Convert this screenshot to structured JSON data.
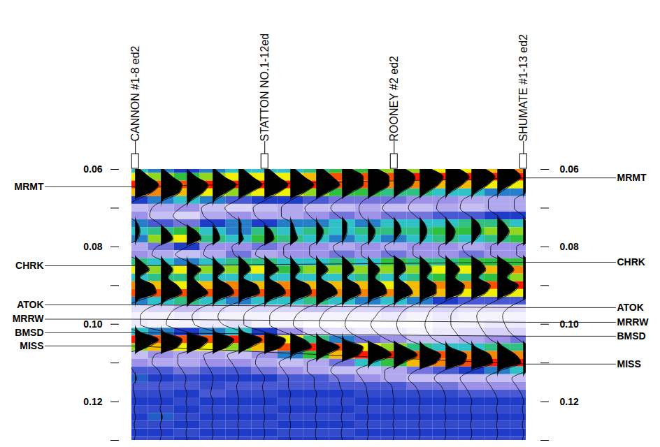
{
  "chart_data": {
    "type": "seismic_section",
    "xlim": [
      0.86,
      16.1
    ],
    "ylim": [
      0.06,
      0.13
    ],
    "yticks": [
      0.06,
      0.08,
      {
        "value": 0.1,
        "label": "0.10"
      },
      0.12
    ],
    "minor_yticks": [
      0.07,
      0.09,
      0.11,
      0.13
    ],
    "tick_labels": "y",
    "colormap": {
      "values": [
        -1,
        -0.6,
        -0.3,
        0,
        0.2,
        0.4,
        0.6,
        1
      ],
      "colors": [
        "#ffffff",
        "#d8d4f8",
        "#9e92e8",
        "#1e3cc8",
        "#30c0c8",
        "#30c040",
        "#f0f000",
        "#ff1a00"
      ]
    },
    "wells": [
      {
        "name": "CANNON #1-8 ed2",
        "trace": 1
      },
      {
        "name": "STATTON NO.1-12ed",
        "trace": 6
      },
      {
        "name": "ROONEY #2 ed2",
        "trace": 11
      },
      {
        "name": "SHUMATE #1-13 ed2",
        "trace": 16
      }
    ],
    "horizons": [
      {
        "name": "MRMT",
        "time_left": 0.0645,
        "time_right": 0.0622
      },
      {
        "name": "CHRK",
        "time_left": 0.0849,
        "time_right": 0.084
      },
      {
        "name": "ATOK",
        "time_left": 0.095,
        "time_right": 0.0957
      },
      {
        "name": "MRRW",
        "time_left": 0.0987,
        "time_right": 0.0995
      },
      {
        "name": "BMSD",
        "time_left": 0.1022,
        "time_right": 0.1031
      },
      {
        "name": "MISS",
        "time_left": 0.1056,
        "time_right": 0.1103
      }
    ],
    "times": [
      0.06,
      0.062,
      0.064,
      0.066,
      0.068,
      0.07,
      0.072,
      0.074,
      0.076,
      0.078,
      0.08,
      0.082,
      0.084,
      0.086,
      0.088,
      0.09,
      0.092,
      0.094,
      0.096,
      0.098,
      0.1,
      0.102,
      0.104,
      0.106,
      0.108,
      0.11,
      0.112,
      0.114,
      0.116,
      0.118,
      0.12,
      0.122,
      0.124,
      0.126,
      0.128,
      0.13
    ],
    "traces": [
      {
        "trace": 1,
        "values": [
          0.2,
          0.6,
          1.0,
          0.7,
          0.0,
          -0.5,
          -0.3,
          0.1,
          0.2,
          0.1,
          -0.4,
          -0.3,
          0.3,
          0.6,
          0.2,
          0.8,
          0.9,
          0.1,
          -0.7,
          -0.9,
          -0.8,
          0.2,
          1.0,
          0.5,
          -0.5,
          -0.3,
          -0.1,
          0.05,
          -0.1,
          -0.05,
          0.0,
          -0.05,
          0.0,
          -0.05,
          0.0,
          -0.05
        ]
      },
      {
        "trace": 2,
        "values": [
          0.1,
          0.5,
          0.9,
          0.8,
          0.1,
          -0.4,
          -0.5,
          -0.1,
          0.3,
          0.5,
          -0.2,
          -0.4,
          0.2,
          0.5,
          0.3,
          0.7,
          0.9,
          0.2,
          -0.6,
          -0.9,
          -0.9,
          0.1,
          0.9,
          0.7,
          -0.3,
          -0.4,
          -0.1,
          0.0,
          -0.1,
          -0.05,
          0.0,
          -0.05,
          0.05,
          -0.05,
          0.0,
          -0.05
        ]
      },
      {
        "trace": 3,
        "values": [
          0.0,
          0.4,
          0.9,
          0.7,
          0.2,
          -0.3,
          -0.6,
          -0.2,
          0.4,
          0.6,
          0.0,
          -0.5,
          0.1,
          0.6,
          0.3,
          0.6,
          0.9,
          0.3,
          -0.5,
          -0.8,
          -0.9,
          0.0,
          0.9,
          0.6,
          -0.4,
          -0.4,
          -0.2,
          -0.05,
          -0.1,
          0.0,
          -0.05,
          0.0,
          -0.05,
          0.0,
          -0.05,
          0.0
        ]
      },
      {
        "trace": 4,
        "values": [
          0.1,
          0.5,
          1.0,
          0.6,
          0.1,
          -0.5,
          -0.4,
          0.0,
          0.2,
          0.3,
          -0.3,
          -0.4,
          0.2,
          0.5,
          0.2,
          0.7,
          0.9,
          0.2,
          -0.6,
          -0.9,
          -0.8,
          0.1,
          0.9,
          0.6,
          -0.4,
          -0.3,
          -0.1,
          0.0,
          -0.05,
          -0.1,
          0.0,
          -0.05,
          0.0,
          -0.05,
          0.0,
          -0.05
        ]
      },
      {
        "trace": 5,
        "values": [
          0.2,
          0.6,
          1.0,
          0.5,
          -0.1,
          -0.6,
          -0.3,
          0.1,
          0.1,
          0.2,
          -0.3,
          -0.2,
          0.3,
          0.5,
          0.2,
          0.8,
          0.9,
          0.1,
          -0.7,
          -0.9,
          -0.7,
          0.2,
          1.0,
          0.5,
          -0.5,
          -0.3,
          -0.1,
          0.0,
          -0.1,
          -0.05,
          0.0,
          -0.05,
          0.0,
          -0.05,
          0.0,
          -0.05
        ]
      },
      {
        "trace": 6,
        "values": [
          0.2,
          0.6,
          1.0,
          0.6,
          0.0,
          -0.5,
          -0.4,
          0.0,
          0.3,
          0.4,
          -0.2,
          -0.4,
          0.3,
          0.6,
          0.2,
          0.7,
          0.9,
          0.2,
          -0.6,
          -0.9,
          -0.9,
          0.0,
          0.9,
          0.7,
          -0.3,
          -0.4,
          -0.2,
          0.0,
          -0.1,
          -0.05,
          0.0,
          -0.05,
          0.0,
          -0.05,
          0.0,
          -0.05
        ]
      },
      {
        "trace": 7,
        "values": [
          0.2,
          0.6,
          1.0,
          0.6,
          0.0,
          -0.4,
          -0.4,
          0.1,
          0.2,
          0.3,
          -0.3,
          -0.3,
          0.2,
          0.4,
          0.2,
          0.8,
          0.9,
          0.2,
          -0.6,
          -0.9,
          -0.9,
          -0.3,
          0.6,
          0.9,
          0.1,
          -0.5,
          -0.3,
          -0.1,
          -0.1,
          0.0,
          -0.05,
          0.0,
          -0.05,
          0.0,
          -0.05,
          0.0
        ]
      },
      {
        "trace": 8,
        "values": [
          0.3,
          0.7,
          1.0,
          0.5,
          -0.1,
          -0.5,
          -0.3,
          0.1,
          0.3,
          0.2,
          -0.3,
          -0.3,
          0.2,
          0.5,
          0.2,
          0.7,
          0.9,
          0.3,
          -0.5,
          -0.9,
          -1.0,
          -0.6,
          0.3,
          1.0,
          0.4,
          -0.4,
          -0.4,
          -0.1,
          -0.1,
          0.0,
          -0.05,
          0.0,
          -0.05,
          0.0,
          -0.05,
          0.0
        ]
      },
      {
        "trace": 9,
        "values": [
          0.4,
          0.9,
          0.9,
          0.4,
          -0.2,
          -0.5,
          -0.2,
          0.2,
          0.2,
          0.1,
          -0.4,
          -0.2,
          0.3,
          0.5,
          0.2,
          0.7,
          0.8,
          0.2,
          -0.6,
          -0.9,
          -1.0,
          -0.7,
          0.1,
          0.9,
          0.7,
          -0.2,
          -0.5,
          -0.2,
          -0.1,
          0.0,
          -0.05,
          0.0,
          -0.05,
          0.0,
          -0.05,
          0.0
        ]
      },
      {
        "trace": 10,
        "values": [
          0.4,
          0.9,
          0.9,
          0.4,
          -0.2,
          -0.4,
          -0.3,
          0.1,
          0.3,
          0.2,
          -0.3,
          -0.3,
          0.2,
          0.5,
          0.3,
          0.7,
          0.8,
          0.1,
          -0.6,
          -0.9,
          -1.0,
          -0.8,
          -0.2,
          0.6,
          1.0,
          0.2,
          -0.5,
          -0.3,
          -0.1,
          -0.05,
          0.0,
          -0.05,
          0.0,
          -0.05,
          0.0,
          -0.05
        ]
      },
      {
        "trace": 11,
        "values": [
          0.5,
          0.9,
          0.8,
          0.3,
          -0.2,
          -0.5,
          -0.2,
          0.2,
          0.3,
          0.1,
          -0.4,
          -0.2,
          0.4,
          0.5,
          0.2,
          0.6,
          0.8,
          0.2,
          -0.5,
          -0.8,
          -1.0,
          -0.8,
          -0.3,
          0.5,
          1.0,
          0.4,
          -0.4,
          -0.4,
          -0.1,
          -0.05,
          0.0,
          -0.05,
          0.0,
          -0.05,
          0.0,
          -0.05
        ]
      },
      {
        "trace": 12,
        "values": [
          0.5,
          1.0,
          0.8,
          0.3,
          -0.3,
          -0.5,
          -0.2,
          0.2,
          0.3,
          0.2,
          -0.3,
          -0.3,
          0.3,
          0.5,
          0.3,
          0.7,
          0.7,
          0.1,
          -0.6,
          -0.9,
          -1.0,
          -0.9,
          -0.5,
          0.3,
          0.9,
          0.7,
          -0.2,
          -0.5,
          -0.2,
          -0.05,
          0.0,
          -0.05,
          0.0,
          -0.05,
          0.0,
          -0.05
        ]
      },
      {
        "trace": 13,
        "values": [
          0.6,
          1.0,
          0.7,
          0.2,
          -0.3,
          -0.4,
          -0.1,
          0.2,
          0.4,
          0.3,
          -0.3,
          -0.3,
          0.3,
          0.6,
          0.4,
          0.8,
          0.7,
          0.0,
          -0.6,
          -0.8,
          -0.9,
          -0.8,
          -0.5,
          0.2,
          0.9,
          0.8,
          -0.1,
          -0.5,
          -0.2,
          -0.05,
          0.0,
          -0.05,
          0.0,
          -0.05,
          0.0,
          -0.05
        ]
      },
      {
        "trace": 14,
        "values": [
          0.6,
          1.0,
          0.7,
          0.2,
          -0.4,
          -0.5,
          -0.1,
          0.3,
          0.4,
          0.2,
          -0.4,
          -0.2,
          0.4,
          0.6,
          0.3,
          0.8,
          0.6,
          -0.1,
          -0.7,
          -0.9,
          -0.9,
          -0.7,
          -0.4,
          0.2,
          0.8,
          0.9,
          0.0,
          -0.5,
          -0.3,
          -0.1,
          0.0,
          -0.05,
          0.0,
          -0.05,
          0.0,
          -0.05
        ]
      },
      {
        "trace": 15,
        "values": [
          0.7,
          1.0,
          0.6,
          0.1,
          -0.4,
          -0.4,
          0.0,
          0.3,
          0.5,
          0.3,
          -0.3,
          -0.3,
          0.4,
          0.7,
          0.4,
          0.9,
          0.6,
          -0.1,
          -0.7,
          -0.9,
          -0.8,
          -0.6,
          -0.3,
          0.3,
          0.8,
          1.0,
          0.1,
          -0.5,
          -0.3,
          -0.1,
          0.0,
          -0.05,
          0.0,
          -0.05,
          0.0,
          -0.05
        ]
      },
      {
        "trace": 16,
        "values": [
          0.8,
          1.0,
          0.6,
          0.1,
          -0.4,
          -0.4,
          0.0,
          0.2,
          0.5,
          0.4,
          -0.3,
          -0.3,
          0.4,
          0.8,
          0.5,
          1.0,
          0.6,
          -0.1,
          -0.7,
          -0.9,
          -0.8,
          -0.6,
          -0.2,
          0.3,
          0.8,
          1.0,
          0.2,
          -0.5,
          -0.3,
          -0.1,
          0.0,
          -0.05,
          0.0,
          -0.05,
          0.0,
          -0.05
        ]
      }
    ]
  }
}
